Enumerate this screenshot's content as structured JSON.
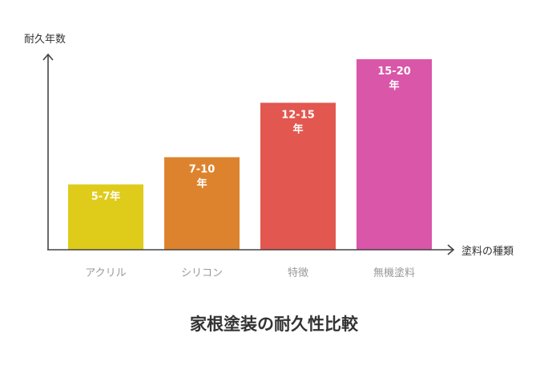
{
  "chart_data": {
    "type": "bar",
    "title": "家根塗装の耐久性比較",
    "ylabel": "耐久年数",
    "xlabel": "塗料の種類",
    "categories": [
      "アクリル",
      "シリコン",
      "特徴",
      "無機塗料"
    ],
    "values": [
      6,
      8.5,
      13.5,
      17.5
    ],
    "value_labels": [
      [
        "5-7年"
      ],
      [
        "7-10",
        "年"
      ],
      [
        "12-15",
        "年"
      ],
      [
        "15-20",
        "年"
      ]
    ],
    "colors": [
      "#dfcb1a",
      "#dd832e",
      "#e2574f",
      "#d956a9"
    ],
    "ylim": [
      0,
      20
    ],
    "grid": false,
    "legend": "none"
  }
}
